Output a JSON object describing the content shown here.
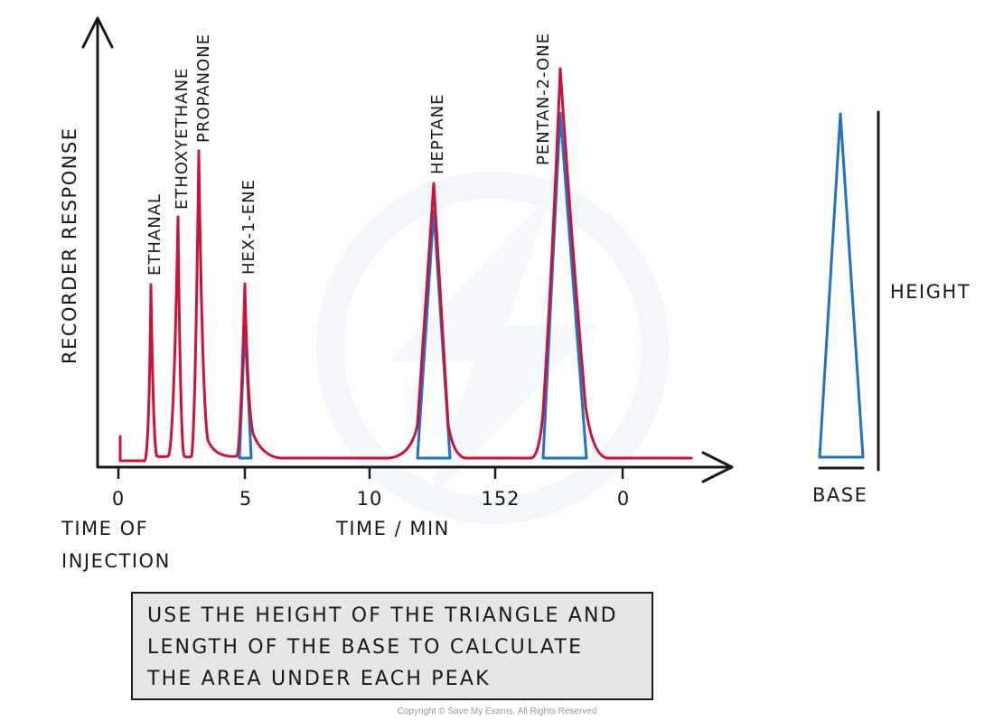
{
  "diagram": {
    "axes": {
      "y_label": "RECORDER RESPONSE",
      "x_label": "TIME / MIN",
      "x_ticks": [
        "0",
        "5",
        "10",
        "152",
        "0"
      ],
      "origin_note": [
        "TIME OF",
        "INJECTION"
      ]
    },
    "peaks": [
      {
        "label": "ETHANAL"
      },
      {
        "label": "ETHOXYETHANE"
      },
      {
        "label": "PROPANONE"
      },
      {
        "label": "HEX-1-ENE"
      },
      {
        "label": "HEPTANE"
      },
      {
        "label": "PENTAN-2-ONE"
      }
    ],
    "triangle_key": {
      "height_label": "HEIGHT",
      "base_label": "BASE"
    },
    "caption": [
      "USE THE HEIGHT OF THE TRIANGLE AND",
      "LENGTH OF THE BASE TO CALCULATE",
      "THE AREA UNDER EACH PEAK"
    ],
    "copyright": "Copyright © Save My Exams. All Rights Reserved",
    "colors": {
      "trace": "#d0103a",
      "triangle": "#1f74c2",
      "axis": "#1a1a1a",
      "caption_bg": "#e6e6e6",
      "watermark": "#eef3f8"
    }
  }
}
